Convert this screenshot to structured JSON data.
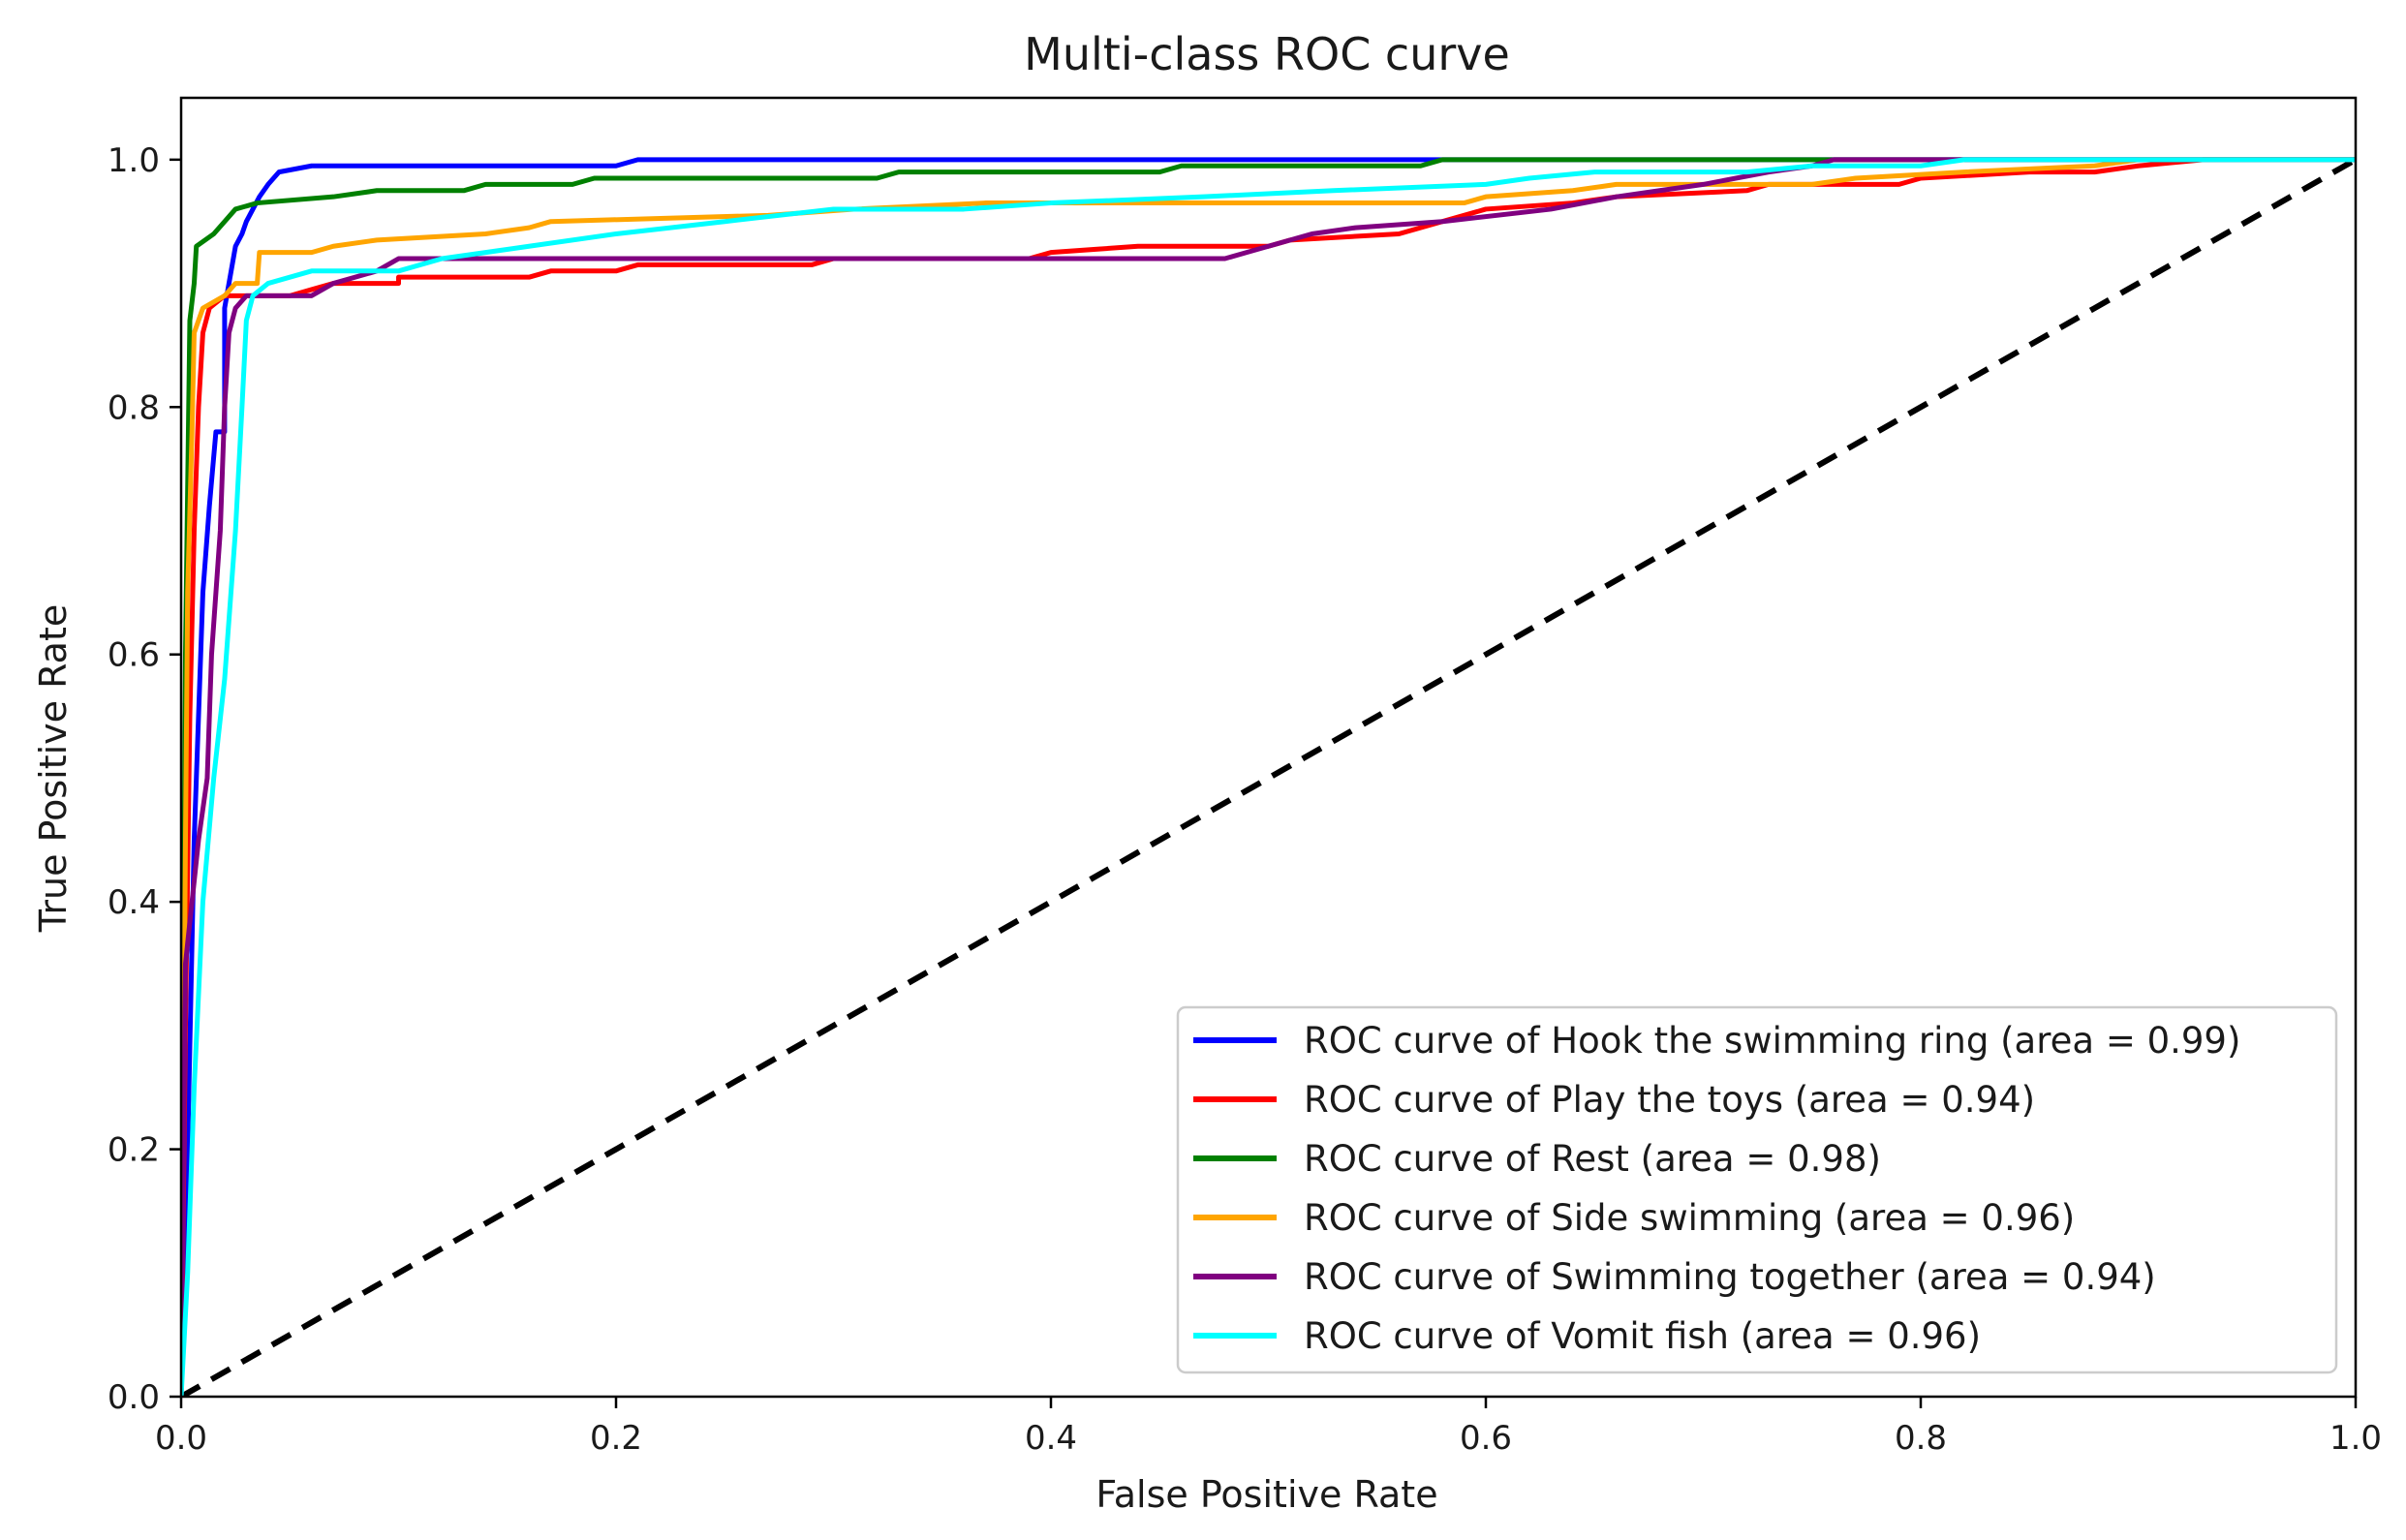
{
  "chart_data": {
    "type": "line",
    "title": "Multi-class ROC curve",
    "xlabel": "False Positive Rate",
    "ylabel": "True Positive Rate",
    "xlim": [
      0.0,
      1.0
    ],
    "ylim": [
      0.0,
      1.05
    ],
    "x_ticks": [
      "0.0",
      "0.2",
      "0.4",
      "0.6",
      "0.8",
      "1.0"
    ],
    "y_ticks": [
      "0.0",
      "0.2",
      "0.4",
      "0.6",
      "0.8",
      "1.0"
    ],
    "grid": false,
    "legend_position": "bottom-right",
    "series": [
      {
        "name": "ROC curve of Hook the swimming ring (area = 0.99)",
        "color": "#0000ff",
        "points": [
          [
            0,
            0
          ],
          [
            0.003,
            0.2
          ],
          [
            0.006,
            0.45
          ],
          [
            0.01,
            0.65
          ],
          [
            0.013,
            0.72
          ],
          [
            0.016,
            0.78
          ],
          [
            0.02,
            0.78
          ],
          [
            0.02,
            0.88
          ],
          [
            0.022,
            0.9
          ],
          [
            0.025,
            0.93
          ],
          [
            0.028,
            0.94
          ],
          [
            0.03,
            0.95
          ],
          [
            0.033,
            0.96
          ],
          [
            0.036,
            0.97
          ],
          [
            0.04,
            0.98
          ],
          [
            0.045,
            0.99
          ],
          [
            0.06,
            0.995
          ],
          [
            0.2,
            0.995
          ],
          [
            0.21,
            1.0
          ],
          [
            1.0,
            1.0
          ]
        ]
      },
      {
        "name": "ROC curve of Play the toys (area = 0.94)",
        "color": "#ff0000",
        "points": [
          [
            0,
            0
          ],
          [
            0.002,
            0.3
          ],
          [
            0.004,
            0.55
          ],
          [
            0.006,
            0.7
          ],
          [
            0.008,
            0.8
          ],
          [
            0.01,
            0.86
          ],
          [
            0.013,
            0.88
          ],
          [
            0.02,
            0.89
          ],
          [
            0.05,
            0.89
          ],
          [
            0.06,
            0.895
          ],
          [
            0.07,
            0.9
          ],
          [
            0.1,
            0.9
          ],
          [
            0.1,
            0.905
          ],
          [
            0.16,
            0.905
          ],
          [
            0.17,
            0.91
          ],
          [
            0.2,
            0.91
          ],
          [
            0.21,
            0.915
          ],
          [
            0.29,
            0.915
          ],
          [
            0.3,
            0.92
          ],
          [
            0.39,
            0.92
          ],
          [
            0.4,
            0.925
          ],
          [
            0.44,
            0.93
          ],
          [
            0.5,
            0.93
          ],
          [
            0.51,
            0.935
          ],
          [
            0.56,
            0.94
          ],
          [
            0.58,
            0.95
          ],
          [
            0.6,
            0.96
          ],
          [
            0.64,
            0.965
          ],
          [
            0.66,
            0.97
          ],
          [
            0.72,
            0.975
          ],
          [
            0.73,
            0.98
          ],
          [
            0.79,
            0.98
          ],
          [
            0.8,
            0.985
          ],
          [
            0.85,
            0.99
          ],
          [
            0.88,
            0.99
          ],
          [
            0.9,
            0.995
          ],
          [
            0.93,
            1.0
          ],
          [
            1.0,
            1.0
          ]
        ]
      },
      {
        "name": "ROC curve of Rest (area = 0.98)",
        "color": "#008000",
        "points": [
          [
            0,
            0
          ],
          [
            0.002,
            0.6
          ],
          [
            0.004,
            0.87
          ],
          [
            0.006,
            0.9
          ],
          [
            0.007,
            0.93
          ],
          [
            0.015,
            0.94
          ],
          [
            0.02,
            0.95
          ],
          [
            0.025,
            0.96
          ],
          [
            0.035,
            0.965
          ],
          [
            0.07,
            0.97
          ],
          [
            0.09,
            0.975
          ],
          [
            0.13,
            0.975
          ],
          [
            0.14,
            0.98
          ],
          [
            0.18,
            0.98
          ],
          [
            0.19,
            0.985
          ],
          [
            0.32,
            0.985
          ],
          [
            0.33,
            0.99
          ],
          [
            0.45,
            0.99
          ],
          [
            0.46,
            0.995
          ],
          [
            0.57,
            0.995
          ],
          [
            0.58,
            1.0
          ],
          [
            1.0,
            1.0
          ]
        ]
      },
      {
        "name": "ROC curve of Side swimming (area = 0.96)",
        "color": "#ffa500",
        "points": [
          [
            0,
            0
          ],
          [
            0.002,
            0.45
          ],
          [
            0.003,
            0.65
          ],
          [
            0.005,
            0.78
          ],
          [
            0.006,
            0.86
          ],
          [
            0.01,
            0.88
          ],
          [
            0.02,
            0.89
          ],
          [
            0.025,
            0.9
          ],
          [
            0.035,
            0.9
          ],
          [
            0.036,
            0.925
          ],
          [
            0.06,
            0.925
          ],
          [
            0.07,
            0.93
          ],
          [
            0.09,
            0.935
          ],
          [
            0.14,
            0.94
          ],
          [
            0.16,
            0.945
          ],
          [
            0.17,
            0.95
          ],
          [
            0.27,
            0.955
          ],
          [
            0.31,
            0.96
          ],
          [
            0.37,
            0.965
          ],
          [
            0.59,
            0.965
          ],
          [
            0.6,
            0.97
          ],
          [
            0.64,
            0.975
          ],
          [
            0.66,
            0.98
          ],
          [
            0.75,
            0.98
          ],
          [
            0.77,
            0.985
          ],
          [
            0.82,
            0.99
          ],
          [
            0.88,
            0.995
          ],
          [
            0.9,
            1.0
          ],
          [
            1.0,
            1.0
          ]
        ]
      },
      {
        "name": "ROC curve of Swimming together (area = 0.94)",
        "color": "#800080",
        "points": [
          [
            0,
            0
          ],
          [
            0.002,
            0.35
          ],
          [
            0.008,
            0.45
          ],
          [
            0.012,
            0.5
          ],
          [
            0.014,
            0.6
          ],
          [
            0.018,
            0.7
          ],
          [
            0.02,
            0.8
          ],
          [
            0.022,
            0.86
          ],
          [
            0.025,
            0.88
          ],
          [
            0.03,
            0.89
          ],
          [
            0.06,
            0.89
          ],
          [
            0.07,
            0.9
          ],
          [
            0.09,
            0.91
          ],
          [
            0.1,
            0.92
          ],
          [
            0.48,
            0.92
          ],
          [
            0.49,
            0.925
          ],
          [
            0.5,
            0.93
          ],
          [
            0.51,
            0.935
          ],
          [
            0.52,
            0.94
          ],
          [
            0.54,
            0.945
          ],
          [
            0.58,
            0.95
          ],
          [
            0.63,
            0.96
          ],
          [
            0.66,
            0.97
          ],
          [
            0.68,
            0.975
          ],
          [
            0.7,
            0.98
          ],
          [
            0.73,
            0.99
          ],
          [
            0.75,
            0.995
          ],
          [
            0.76,
            1.0
          ],
          [
            1.0,
            1.0
          ]
        ]
      },
      {
        "name": "ROC curve of Vomit fish (area = 0.96)",
        "color": "#00ffff",
        "points": [
          [
            0,
            0
          ],
          [
            0.003,
            0.1
          ],
          [
            0.006,
            0.25
          ],
          [
            0.01,
            0.4
          ],
          [
            0.015,
            0.5
          ],
          [
            0.02,
            0.58
          ],
          [
            0.025,
            0.7
          ],
          [
            0.028,
            0.8
          ],
          [
            0.03,
            0.87
          ],
          [
            0.033,
            0.89
          ],
          [
            0.04,
            0.9
          ],
          [
            0.05,
            0.905
          ],
          [
            0.06,
            0.91
          ],
          [
            0.1,
            0.91
          ],
          [
            0.12,
            0.92
          ],
          [
            0.16,
            0.93
          ],
          [
            0.2,
            0.94
          ],
          [
            0.25,
            0.95
          ],
          [
            0.3,
            0.96
          ],
          [
            0.36,
            0.96
          ],
          [
            0.4,
            0.965
          ],
          [
            0.47,
            0.97
          ],
          [
            0.53,
            0.975
          ],
          [
            0.6,
            0.98
          ],
          [
            0.62,
            0.985
          ],
          [
            0.65,
            0.99
          ],
          [
            0.72,
            0.99
          ],
          [
            0.75,
            0.995
          ],
          [
            0.8,
            0.995
          ],
          [
            0.82,
            1.0
          ],
          [
            1.0,
            1.0
          ]
        ]
      }
    ],
    "reference_line": {
      "points": [
        [
          0,
          0
        ],
        [
          1,
          1
        ]
      ],
      "color": "#000000",
      "style": "dashed"
    }
  }
}
